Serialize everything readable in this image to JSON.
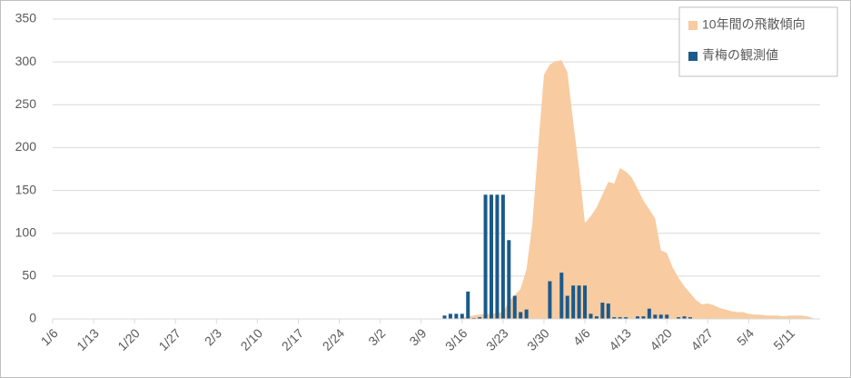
{
  "chart_data": {
    "type": "combo",
    "categories": [
      "1/6",
      null,
      null,
      null,
      null,
      null,
      null,
      "1/13",
      null,
      null,
      null,
      null,
      null,
      null,
      "1/20",
      null,
      null,
      null,
      null,
      null,
      null,
      "1/27",
      null,
      null,
      null,
      null,
      null,
      null,
      "2/3",
      null,
      null,
      null,
      null,
      null,
      null,
      "2/10",
      null,
      null,
      null,
      null,
      null,
      null,
      "2/17",
      null,
      null,
      null,
      null,
      null,
      null,
      "2/24",
      null,
      null,
      null,
      null,
      null,
      null,
      "3/2",
      null,
      null,
      null,
      null,
      null,
      null,
      "3/9",
      null,
      null,
      null,
      null,
      null,
      null,
      "3/16",
      null,
      null,
      null,
      null,
      null,
      null,
      "3/23",
      null,
      null,
      null,
      null,
      null,
      null,
      "3/30",
      null,
      null,
      null,
      null,
      null,
      null,
      "4/6",
      null,
      null,
      null,
      null,
      null,
      null,
      "4/13",
      null,
      null,
      null,
      null,
      null,
      null,
      "4/20",
      null,
      null,
      null,
      null,
      null,
      null,
      "4/27",
      null,
      null,
      null,
      null,
      null,
      null,
      "5/4",
      null,
      null,
      null,
      null,
      null,
      null,
      "5/11",
      null,
      null,
      null,
      null
    ],
    "series": [
      {
        "name": "10年間の飛散傾向",
        "type": "area",
        "color": "#f8cba0",
        "values": [
          0,
          0,
          0,
          0,
          0,
          0,
          0,
          0,
          0,
          0,
          0,
          0,
          0,
          0,
          0,
          0,
          0,
          0,
          0,
          0,
          0,
          0,
          0,
          0,
          0,
          0,
          0,
          0,
          0,
          0,
          0,
          0,
          0,
          0,
          0,
          0,
          0,
          0,
          0,
          0,
          0,
          0,
          0,
          0,
          0,
          0,
          0,
          0,
          0,
          0,
          0,
          0,
          0,
          0,
          0,
          0,
          0,
          0,
          0,
          0,
          0,
          0,
          0,
          0,
          0,
          0,
          0,
          0,
          0,
          0,
          1,
          3,
          4,
          5,
          6,
          6,
          7,
          8,
          20,
          28,
          35,
          58,
          110,
          200,
          285,
          297,
          301,
          302,
          288,
          230,
          175,
          112,
          120,
          130,
          145,
          160,
          158,
          176,
          172,
          165,
          152,
          138,
          128,
          117,
          80,
          77,
          60,
          48,
          38,
          30,
          22,
          17,
          18,
          16,
          13,
          11,
          9,
          8,
          8,
          6,
          5,
          5,
          4,
          4,
          4,
          3,
          4,
          4,
          4,
          3,
          1
        ]
      },
      {
        "name": "青梅の観測値",
        "type": "bar",
        "color": "#1b5a8a",
        "values": [
          0,
          0,
          0,
          0,
          0,
          0,
          0,
          0,
          0,
          0,
          0,
          0,
          0,
          0,
          0,
          0,
          0,
          0,
          0,
          0,
          0,
          0,
          0,
          0,
          0,
          0,
          0,
          0,
          0,
          0,
          0,
          0,
          0,
          0,
          0,
          0,
          0,
          0,
          0,
          0,
          0,
          0,
          0,
          0,
          0,
          0,
          0,
          0,
          0,
          0,
          0,
          0,
          0,
          0,
          0,
          0,
          0,
          0,
          0,
          0,
          0,
          0,
          0,
          0,
          0,
          0,
          0,
          4,
          6,
          6,
          6,
          32,
          1,
          2,
          145,
          145,
          145,
          145,
          92,
          27,
          8,
          11,
          0,
          0,
          0,
          44,
          0,
          54,
          27,
          39,
          39,
          39,
          6,
          3,
          19,
          18,
          2,
          2,
          2,
          0,
          3,
          3,
          12,
          5,
          5,
          5,
          0,
          2,
          3,
          2,
          0,
          0,
          0,
          0,
          0,
          0,
          0,
          0,
          0,
          0,
          0,
          0,
          0,
          0,
          0,
          0,
          0,
          0,
          0,
          0,
          0
        ]
      }
    ],
    "ylim": [
      0,
      350
    ],
    "yticks": [
      0,
      50,
      100,
      150,
      200,
      250,
      300,
      350
    ],
    "grid": true,
    "legend": "top-right"
  }
}
